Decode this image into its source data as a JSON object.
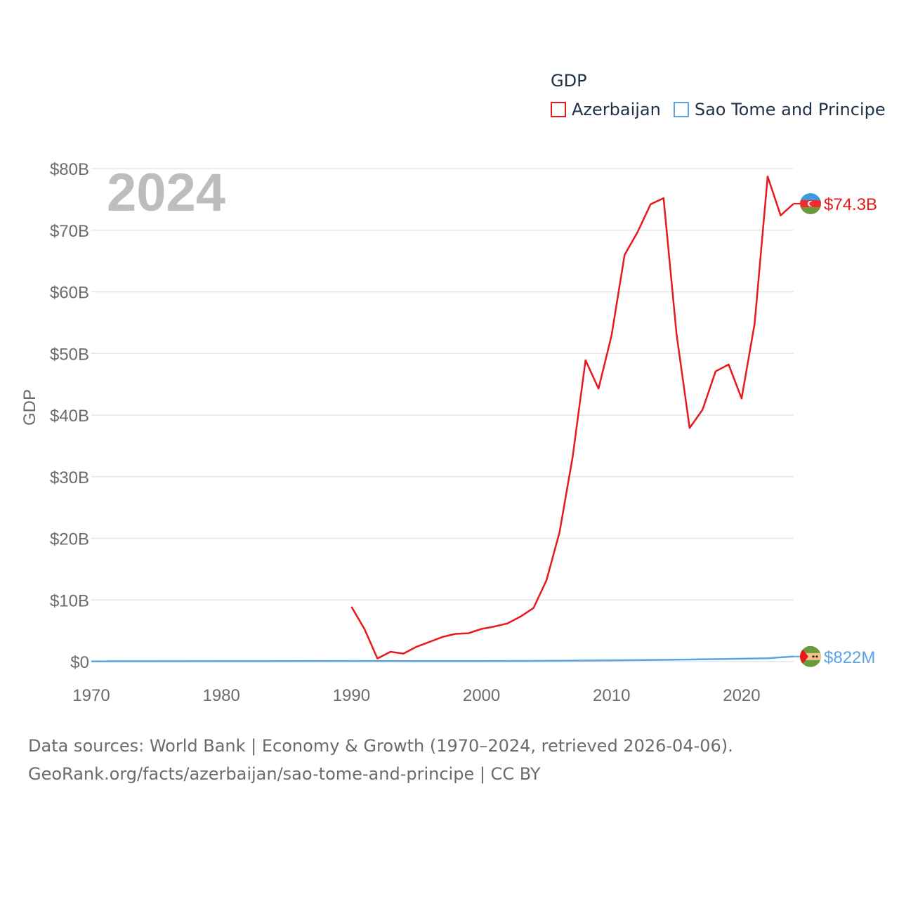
{
  "chart_data": {
    "type": "line",
    "title": "GDP",
    "ylabel": "GDP",
    "xlabel": "",
    "year_label": "2024",
    "xlim": [
      1970,
      2024
    ],
    "ylim": [
      0,
      80
    ],
    "x_ticks": [
      1970,
      1980,
      1990,
      2000,
      2010,
      2020
    ],
    "y_ticks": [
      {
        "value": 0,
        "label": "$0"
      },
      {
        "value": 10,
        "label": "$10B"
      },
      {
        "value": 20,
        "label": "$20B"
      },
      {
        "value": 30,
        "label": "$30B"
      },
      {
        "value": 40,
        "label": "$40B"
      },
      {
        "value": 50,
        "label": "$50B"
      },
      {
        "value": 60,
        "label": "$60B"
      },
      {
        "value": 70,
        "label": "$70B"
      },
      {
        "value": 80,
        "label": "$80B"
      }
    ],
    "units": "billions USD",
    "series": [
      {
        "name": "Azerbaijan",
        "color": "#e8191c",
        "end_label": "$74.3B",
        "flag": "azerbaijan-flag",
        "x": [
          1990,
          1991,
          1992,
          1993,
          1994,
          1995,
          1996,
          1997,
          1998,
          1999,
          2000,
          2001,
          2002,
          2003,
          2004,
          2005,
          2006,
          2007,
          2008,
          2009,
          2010,
          2011,
          2012,
          2013,
          2014,
          2015,
          2016,
          2017,
          2018,
          2019,
          2020,
          2021,
          2022,
          2023,
          2024
        ],
        "values": [
          8.9,
          5.3,
          0.5,
          1.6,
          1.3,
          2.4,
          3.2,
          4.0,
          4.5,
          4.6,
          5.3,
          5.7,
          6.2,
          7.3,
          8.7,
          13.2,
          21.0,
          33.1,
          48.9,
          44.3,
          52.9,
          66.0,
          69.7,
          74.2,
          75.2,
          53.1,
          37.9,
          40.9,
          47.1,
          48.2,
          42.7,
          54.8,
          78.7,
          72.4,
          74.3
        ]
      },
      {
        "name": "Sao Tome and Principe",
        "color": "#5aa4e6",
        "end_label": "$822M",
        "flag": "sao-tome-flag",
        "x": [
          1970,
          1975,
          1980,
          1985,
          1990,
          1995,
          2000,
          2005,
          2010,
          2015,
          2020,
          2022,
          2023,
          2024
        ],
        "values": [
          0.05,
          0.06,
          0.07,
          0.08,
          0.1,
          0.09,
          0.08,
          0.13,
          0.2,
          0.32,
          0.47,
          0.55,
          0.7,
          0.82
        ]
      }
    ]
  },
  "legend": {
    "title": "GDP",
    "items": [
      {
        "label": "Azerbaijan",
        "color": "#e8191c"
      },
      {
        "label": "Sao Tome and Principe",
        "color": "#5aa4e6"
      }
    ]
  },
  "source": {
    "line1": "Data sources: World Bank | Economy & Growth (1970–2024, retrieved 2026-04-06).",
    "line2": "GeoRank.org/facts/azerbaijan/sao-tome-and-principe | CC BY"
  }
}
